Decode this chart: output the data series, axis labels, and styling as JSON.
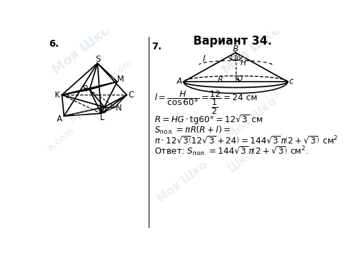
{
  "title": "Вариант 34.",
  "title_fontsize": 12,
  "background_color": "#ffffff",
  "watermark_color": "#b8cfe0",
  "left_label": "6.",
  "right_label": "7."
}
